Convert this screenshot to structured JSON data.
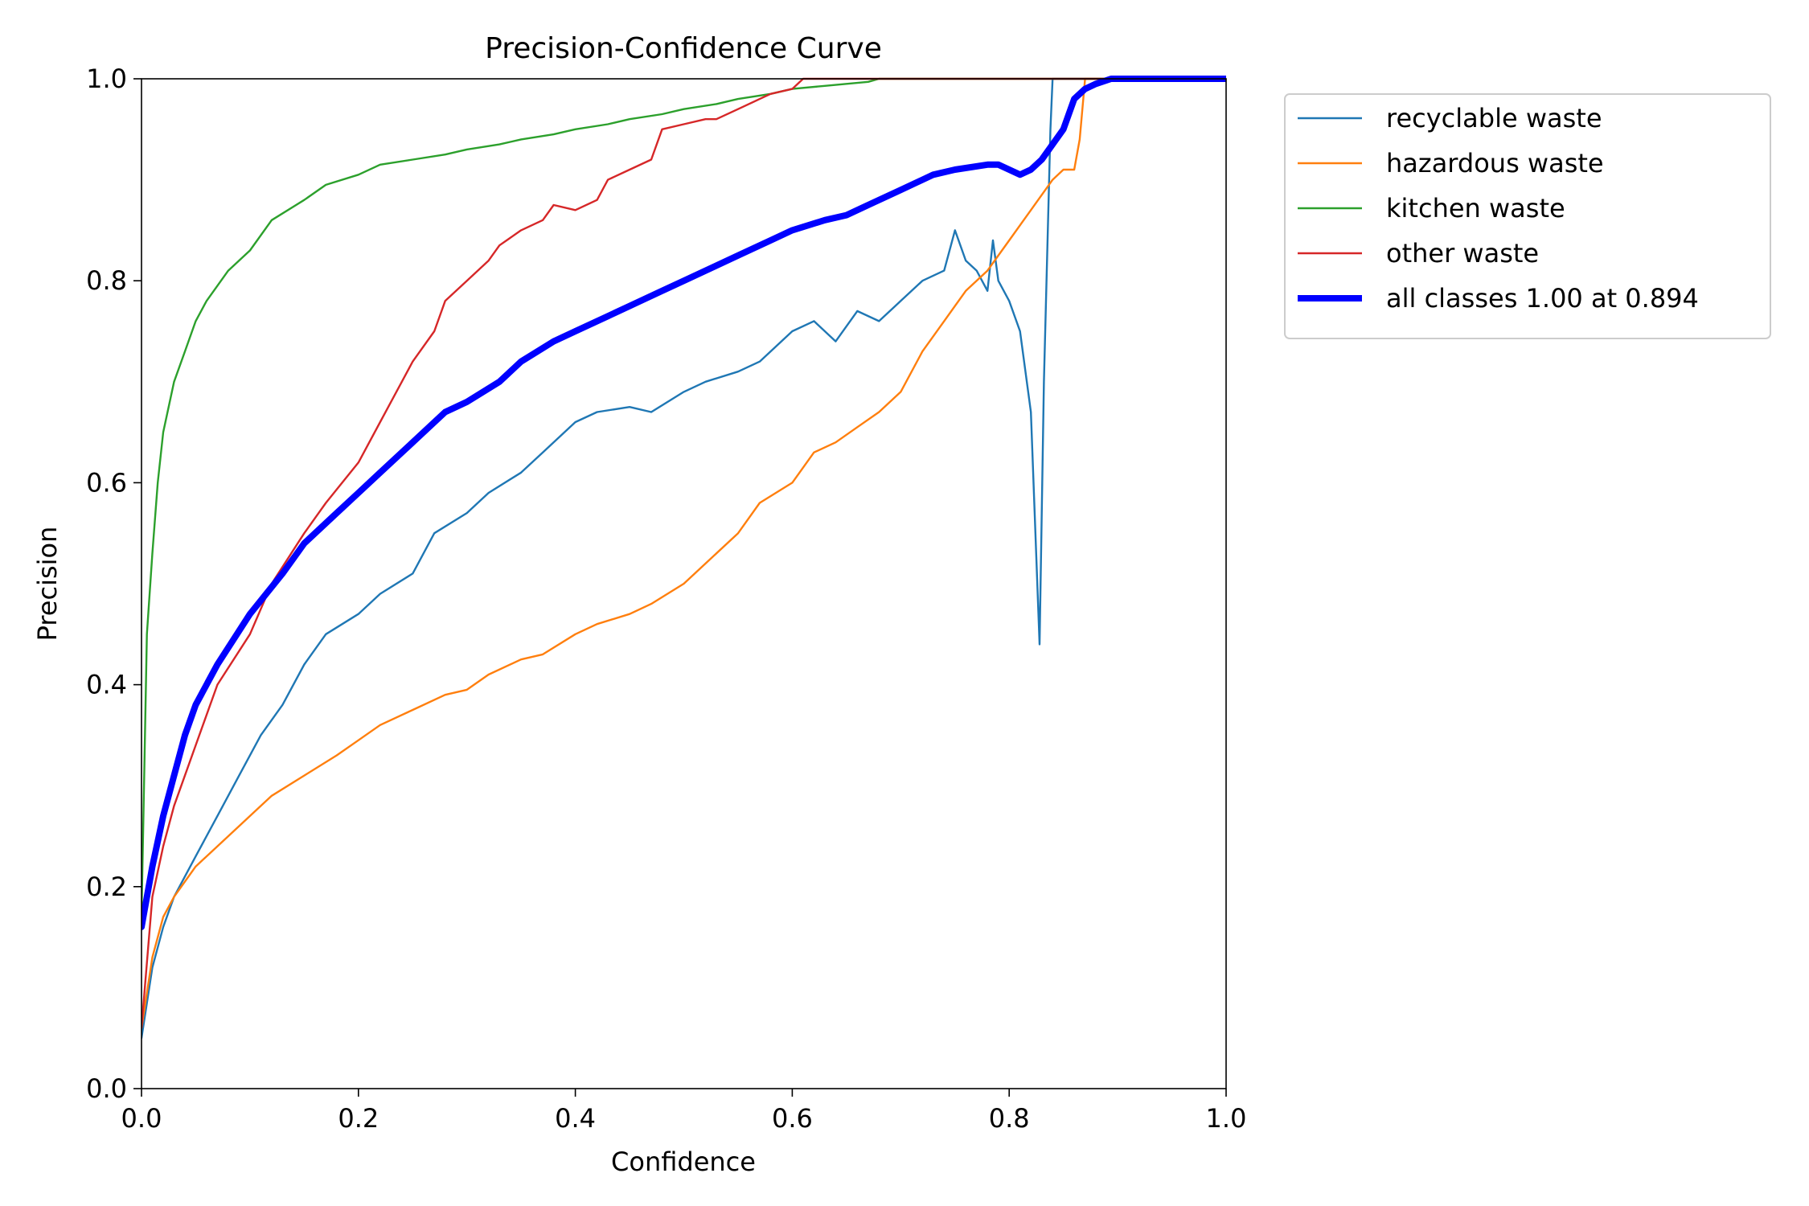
{
  "chart_data": {
    "type": "line",
    "title": "Precision-Confidence Curve",
    "xlabel": "Confidence",
    "ylabel": "Precision",
    "xlim": [
      0.0,
      1.0
    ],
    "ylim": [
      0.0,
      1.0
    ],
    "xticks": [
      "0.0",
      "0.2",
      "0.4",
      "0.6",
      "0.8",
      "1.0"
    ],
    "yticks": [
      "0.0",
      "0.2",
      "0.4",
      "0.6",
      "0.8",
      "1.0"
    ],
    "grid": false,
    "legend_position": "outside-upper-right",
    "series": [
      {
        "name": "recyclable waste",
        "color": "#1f77b4",
        "x": [
          0.0,
          0.01,
          0.02,
          0.03,
          0.05,
          0.07,
          0.09,
          0.11,
          0.13,
          0.15,
          0.17,
          0.2,
          0.22,
          0.25,
          0.27,
          0.3,
          0.32,
          0.35,
          0.37,
          0.4,
          0.42,
          0.45,
          0.47,
          0.5,
          0.52,
          0.55,
          0.57,
          0.6,
          0.62,
          0.64,
          0.66,
          0.68,
          0.7,
          0.72,
          0.74,
          0.75,
          0.76,
          0.77,
          0.78,
          0.785,
          0.79,
          0.8,
          0.81,
          0.82,
          0.828,
          0.832,
          0.838,
          0.84,
          0.86,
          0.9,
          1.0
        ],
        "y": [
          0.05,
          0.12,
          0.16,
          0.19,
          0.23,
          0.27,
          0.31,
          0.35,
          0.38,
          0.42,
          0.45,
          0.47,
          0.49,
          0.51,
          0.55,
          0.57,
          0.59,
          0.61,
          0.63,
          0.66,
          0.67,
          0.675,
          0.67,
          0.69,
          0.7,
          0.71,
          0.72,
          0.75,
          0.76,
          0.74,
          0.77,
          0.76,
          0.78,
          0.8,
          0.81,
          0.85,
          0.82,
          0.81,
          0.79,
          0.84,
          0.8,
          0.78,
          0.75,
          0.67,
          0.44,
          0.7,
          0.95,
          1.0,
          1.0,
          1.0,
          1.0
        ]
      },
      {
        "name": "hazardous waste",
        "color": "#ff7f0e",
        "x": [
          0.0,
          0.01,
          0.02,
          0.03,
          0.05,
          0.07,
          0.1,
          0.12,
          0.15,
          0.18,
          0.2,
          0.22,
          0.25,
          0.28,
          0.3,
          0.32,
          0.35,
          0.37,
          0.4,
          0.42,
          0.45,
          0.47,
          0.5,
          0.52,
          0.55,
          0.57,
          0.6,
          0.62,
          0.64,
          0.66,
          0.68,
          0.7,
          0.72,
          0.74,
          0.76,
          0.78,
          0.8,
          0.82,
          0.84,
          0.85,
          0.86,
          0.865,
          0.87,
          0.88,
          1.0
        ],
        "y": [
          0.06,
          0.13,
          0.17,
          0.19,
          0.22,
          0.24,
          0.27,
          0.29,
          0.31,
          0.33,
          0.345,
          0.36,
          0.375,
          0.39,
          0.395,
          0.41,
          0.425,
          0.43,
          0.45,
          0.46,
          0.47,
          0.48,
          0.5,
          0.52,
          0.55,
          0.58,
          0.6,
          0.63,
          0.64,
          0.655,
          0.67,
          0.69,
          0.73,
          0.76,
          0.79,
          0.81,
          0.84,
          0.87,
          0.9,
          0.91,
          0.91,
          0.94,
          1.0,
          1.0,
          1.0
        ]
      },
      {
        "name": "kitchen waste",
        "color": "#2ca02c",
        "x": [
          0.0,
          0.005,
          0.01,
          0.015,
          0.02,
          0.03,
          0.04,
          0.05,
          0.06,
          0.08,
          0.1,
          0.12,
          0.15,
          0.17,
          0.2,
          0.22,
          0.25,
          0.28,
          0.3,
          0.33,
          0.35,
          0.38,
          0.4,
          0.43,
          0.45,
          0.48,
          0.5,
          0.53,
          0.55,
          0.58,
          0.6,
          0.63,
          0.65,
          0.67,
          0.68,
          1.0
        ],
        "y": [
          0.17,
          0.45,
          0.53,
          0.6,
          0.65,
          0.7,
          0.73,
          0.76,
          0.78,
          0.81,
          0.83,
          0.86,
          0.88,
          0.895,
          0.905,
          0.915,
          0.92,
          0.925,
          0.93,
          0.935,
          0.94,
          0.945,
          0.95,
          0.955,
          0.96,
          0.965,
          0.97,
          0.975,
          0.98,
          0.985,
          0.99,
          0.993,
          0.995,
          0.997,
          1.0,
          1.0
        ]
      },
      {
        "name": "other waste",
        "color": "#d62728",
        "x": [
          0.0,
          0.01,
          0.02,
          0.03,
          0.05,
          0.07,
          0.1,
          0.12,
          0.15,
          0.17,
          0.2,
          0.22,
          0.24,
          0.25,
          0.27,
          0.28,
          0.3,
          0.32,
          0.33,
          0.35,
          0.37,
          0.38,
          0.4,
          0.42,
          0.43,
          0.45,
          0.47,
          0.48,
          0.5,
          0.52,
          0.53,
          0.55,
          0.57,
          0.58,
          0.6,
          0.61,
          1.0
        ],
        "y": [
          0.06,
          0.19,
          0.24,
          0.28,
          0.34,
          0.4,
          0.45,
          0.5,
          0.55,
          0.58,
          0.62,
          0.66,
          0.7,
          0.72,
          0.75,
          0.78,
          0.8,
          0.82,
          0.835,
          0.85,
          0.86,
          0.875,
          0.87,
          0.88,
          0.9,
          0.91,
          0.92,
          0.95,
          0.955,
          0.96,
          0.96,
          0.97,
          0.98,
          0.985,
          0.99,
          1.0,
          1.0
        ]
      },
      {
        "name": "all classes 1.00 at 0.894",
        "color": "#0000ff",
        "bold": true,
        "x": [
          0.0,
          0.01,
          0.02,
          0.03,
          0.04,
          0.05,
          0.07,
          0.1,
          0.13,
          0.15,
          0.18,
          0.2,
          0.22,
          0.25,
          0.28,
          0.3,
          0.33,
          0.35,
          0.38,
          0.4,
          0.43,
          0.45,
          0.48,
          0.5,
          0.53,
          0.55,
          0.58,
          0.6,
          0.63,
          0.65,
          0.68,
          0.7,
          0.73,
          0.75,
          0.78,
          0.79,
          0.8,
          0.81,
          0.82,
          0.83,
          0.84,
          0.85,
          0.86,
          0.87,
          0.88,
          0.894,
          1.0
        ],
        "y": [
          0.16,
          0.22,
          0.27,
          0.31,
          0.35,
          0.38,
          0.42,
          0.47,
          0.51,
          0.54,
          0.57,
          0.59,
          0.61,
          0.64,
          0.67,
          0.68,
          0.7,
          0.72,
          0.74,
          0.75,
          0.765,
          0.775,
          0.79,
          0.8,
          0.815,
          0.825,
          0.84,
          0.85,
          0.86,
          0.865,
          0.88,
          0.89,
          0.905,
          0.91,
          0.915,
          0.915,
          0.91,
          0.905,
          0.91,
          0.92,
          0.935,
          0.95,
          0.98,
          0.99,
          0.995,
          1.0,
          1.0
        ]
      }
    ]
  }
}
